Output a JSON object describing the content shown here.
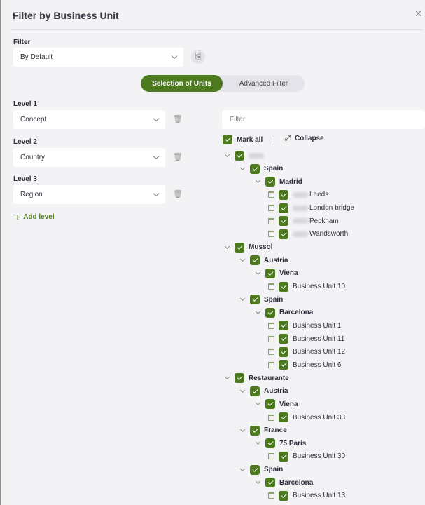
{
  "header": {
    "title": "Filter by Business Unit",
    "close_icon": "close-icon"
  },
  "filter": {
    "label": "Filter",
    "value": "By Default"
  },
  "tabs": [
    {
      "label": "Selection of Units",
      "active": true
    },
    {
      "label": "Advanced Filter",
      "active": false
    }
  ],
  "levels": [
    {
      "label": "Level 1",
      "value": "Concept"
    },
    {
      "label": "Level 2",
      "value": "Country"
    },
    {
      "label": "Level 3",
      "value": "Region"
    }
  ],
  "add_level": "Add level",
  "tree_filter": {
    "placeholder": "Filter"
  },
  "mark_all": "Mark all",
  "collapse": "Collapse",
  "colors": {
    "accent": "#4d7a1f",
    "background": "#f3f3f6"
  },
  "tree": [
    {
      "depth": 0,
      "label": "",
      "blurred": true
    },
    {
      "depth": 1,
      "label": "Spain"
    },
    {
      "depth": 2,
      "label": "Madrid"
    },
    {
      "depth": 3,
      "label": "Leeds",
      "blurred": true
    },
    {
      "depth": 3,
      "label": "London bridge",
      "blurred": true
    },
    {
      "depth": 3,
      "label": "Peckham",
      "blurred": true
    },
    {
      "depth": 3,
      "label": "Wandsworth",
      "blurred": true
    },
    {
      "depth": 0,
      "label": "Mussol"
    },
    {
      "depth": 1,
      "label": "Austria"
    },
    {
      "depth": 2,
      "label": "Viena"
    },
    {
      "depth": 3,
      "label": "Business Unit 10"
    },
    {
      "depth": 1,
      "label": "Spain"
    },
    {
      "depth": 2,
      "label": "Barcelona"
    },
    {
      "depth": 3,
      "label": "Business Unit 1"
    },
    {
      "depth": 3,
      "label": "Business Unit 11"
    },
    {
      "depth": 3,
      "label": "Business Unit 12"
    },
    {
      "depth": 3,
      "label": "Business Unit 6"
    },
    {
      "depth": 0,
      "label": "Restaurante"
    },
    {
      "depth": 1,
      "label": "Austria"
    },
    {
      "depth": 2,
      "label": "Viena"
    },
    {
      "depth": 3,
      "label": "Business Unit 33"
    },
    {
      "depth": 1,
      "label": "France"
    },
    {
      "depth": 2,
      "label": "75 Paris"
    },
    {
      "depth": 3,
      "label": "Business Unit 30"
    },
    {
      "depth": 1,
      "label": "Spain"
    },
    {
      "depth": 2,
      "label": "Barcelona"
    },
    {
      "depth": 3,
      "label": "Business Unit 13"
    }
  ]
}
